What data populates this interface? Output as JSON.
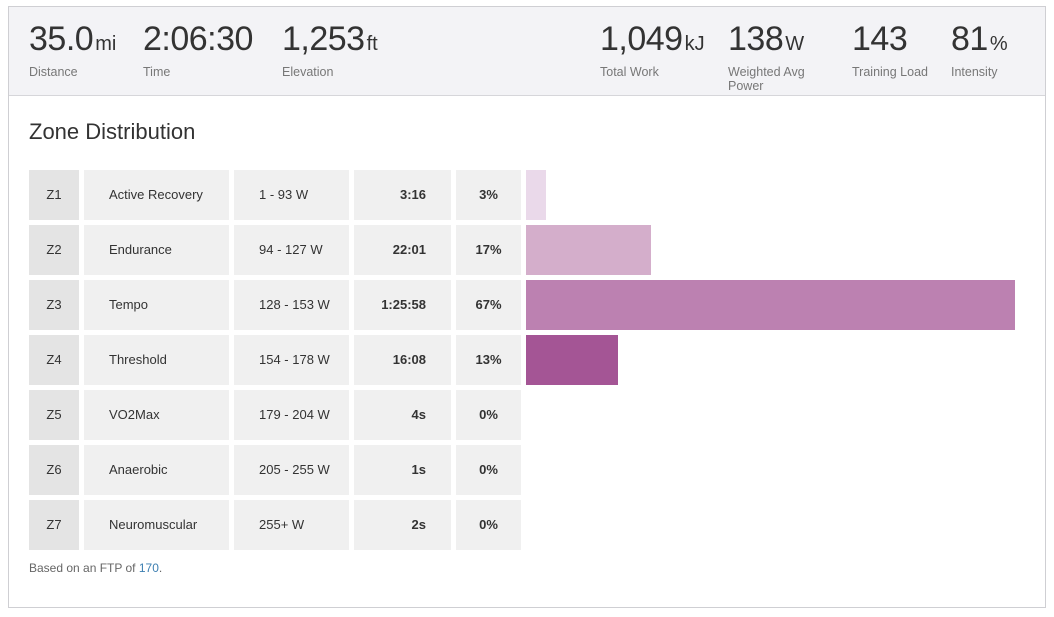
{
  "stats": [
    {
      "value": "35.0",
      "unit": "mi",
      "label": "Distance"
    },
    {
      "value": "2:06:30",
      "unit": "",
      "label": "Time"
    },
    {
      "value": "1,253",
      "unit": "ft",
      "label": "Elevation"
    },
    {
      "value": "1,049",
      "unit": "kJ",
      "label": "Total Work"
    },
    {
      "value": "138",
      "unit": "W",
      "label": "Weighted Avg Power"
    },
    {
      "value": "143",
      "unit": "",
      "label": "Training Load"
    },
    {
      "value": "81",
      "unit": "%",
      "label": "Intensity"
    }
  ],
  "zone_section": {
    "title": "Zone Distribution",
    "zones": [
      {
        "zone": "Z1",
        "name": "Active Recovery",
        "range": "1 - 93 W",
        "time": "3:16",
        "percent": "3%",
        "fraction": 0.0399,
        "color": "#ead9ea"
      },
      {
        "zone": "Z2",
        "name": "Endurance",
        "range": "94 - 127 W",
        "time": "22:01",
        "percent": "17%",
        "fraction": 0.2554,
        "color": "#d4aecb"
      },
      {
        "zone": "Z3",
        "name": "Tempo",
        "range": "128 - 153 W",
        "time": "1:25:58",
        "percent": "67%",
        "fraction": 1.0,
        "color": "#bc81b1"
      },
      {
        "zone": "Z4",
        "name": "Threshold",
        "range": "154 - 178 W",
        "time": "16:08",
        "percent": "13%",
        "fraction": 0.1881,
        "color": "#a45595"
      },
      {
        "zone": "Z5",
        "name": "VO2Max",
        "range": "179 - 204 W",
        "time": "4s",
        "percent": "0%",
        "fraction": 0,
        "color": "#8e3f80"
      },
      {
        "zone": "Z6",
        "name": "Anaerobic",
        "range": "205 - 255 W",
        "time": "1s",
        "percent": "0%",
        "fraction": 0,
        "color": "#7a2e6d"
      },
      {
        "zone": "Z7",
        "name": "Neuromuscular",
        "range": "255+ W",
        "time": "2s",
        "percent": "0%",
        "fraction": 0,
        "color": "#661f5b"
      }
    ],
    "footnote_prefix": "Based on an FTP of ",
    "ftp_value": "170",
    "footnote_suffix": "."
  }
}
